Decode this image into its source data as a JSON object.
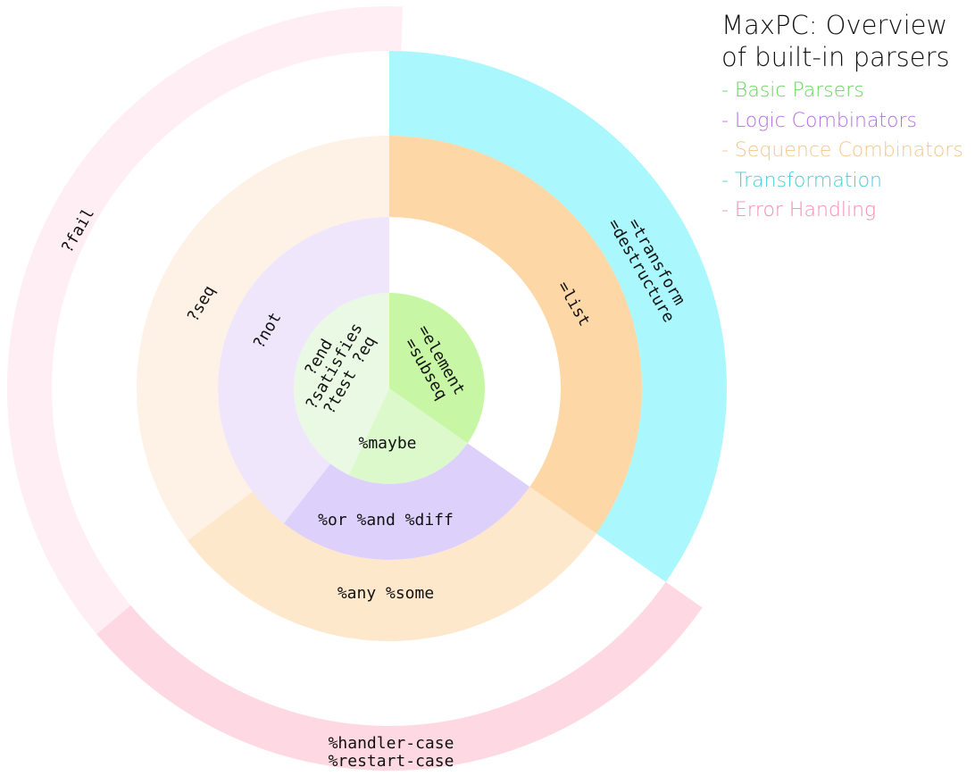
{
  "legend": {
    "title_line1": "MaxPC: Overview",
    "title_line2": "of built-in parsers",
    "items": [
      {
        "label": "- Basic Parsers",
        "color": "#66d35c"
      },
      {
        "label": "- Logic Combinators",
        "color": "#b36ee8"
      },
      {
        "label": "- Sequence Combinators",
        "color": "#f5c58a"
      },
      {
        "label": "- Transformation",
        "color": "#43cfd6"
      },
      {
        "label": "- Error Handling",
        "color": "#f28bb0"
      }
    ]
  },
  "segments": [
    {
      "id": "basic-left",
      "category": "Basic Parsers",
      "fill": "#e9f9e4",
      "lines": [
        "?end",
        "?satisfies",
        "?test ?eq"
      ]
    },
    {
      "id": "basic-right",
      "category": "Basic Parsers",
      "fill": "#c7f7a5",
      "lines": [
        "=element",
        "=subseq"
      ]
    },
    {
      "id": "basic-bottom",
      "category": "Basic Parsers",
      "fill": "#dcf9cb",
      "lines": [
        "%maybe"
      ]
    },
    {
      "id": "logic-not",
      "category": "Logic Combinators",
      "fill": "#efe6fc",
      "lines": [
        "?not"
      ]
    },
    {
      "id": "logic-or",
      "category": "Logic Combinators",
      "fill": "#ddd0fb",
      "lines": [
        "%or %and %diff"
      ]
    },
    {
      "id": "seq-seq",
      "category": "Sequence Combinators",
      "fill": "#fef2e6",
      "lines": [
        "?seq"
      ]
    },
    {
      "id": "seq-any",
      "category": "Sequence Combinators",
      "fill": "#fde8cc",
      "lines": [
        "%any %some"
      ]
    },
    {
      "id": "transform-list",
      "category": "Transformation",
      "fill": "#fdd8a6",
      "lines": [
        "=list"
      ]
    },
    {
      "id": "transform-outer",
      "category": "Transformation",
      "fill": "#aaf7fd",
      "lines": [
        "=transform",
        "=destructure"
      ]
    },
    {
      "id": "error-fail",
      "category": "Error Handling",
      "fill": "#ffeef3",
      "lines": [
        "?fail"
      ]
    },
    {
      "id": "error-handler",
      "category": "Error Handling",
      "fill": "#fed9e3",
      "lines": [
        "%handler-case",
        "%restart-case"
      ]
    }
  ]
}
